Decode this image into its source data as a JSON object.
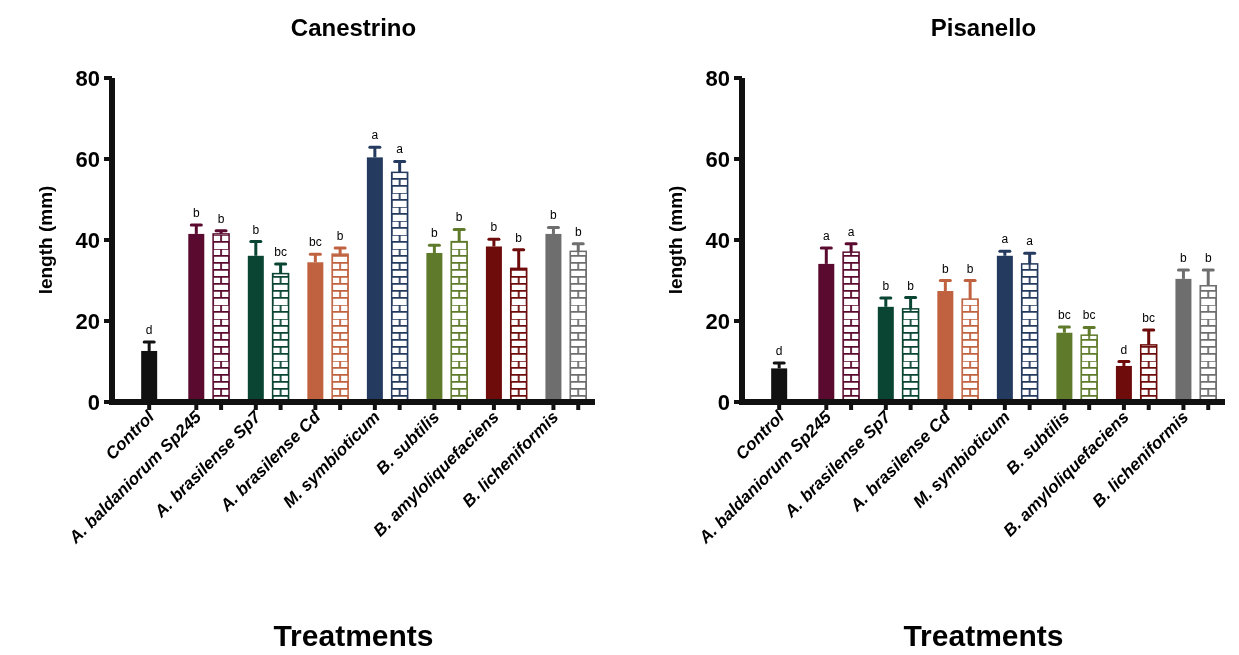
{
  "chart_data": [
    {
      "type": "bar",
      "title": "Canestrino",
      "xlabel": "Treatments",
      "ylabel": "length (mm)",
      "categories": [
        "Control",
        "A. baldaniorum Sp245",
        "A. brasilense Sp7",
        "A. brasilense Cd",
        "M. symbioticum",
        "B. subtilis",
        "B. amyloliquefaciens",
        "B. licheniformis"
      ],
      "ylim": [
        0,
        80
      ],
      "yticks": [
        0,
        20,
        40,
        60,
        80
      ],
      "series": [
        {
          "colors": [
            "#111111",
            "#5a0a2e",
            "#0a4533",
            "#c0623f",
            "#243a5e",
            "#5e7a2a",
            "#6e0b0b",
            "#6e6e6e"
          ],
          "values": [
            12.6,
            41.5,
            36.1,
            34.5,
            60.4,
            36.8,
            38.4,
            41.5
          ],
          "errors": [
            2.2,
            2.2,
            3.5,
            2,
            2.5,
            1.9,
            1.8,
            1.6
          ],
          "value_labels": [
            "d",
            "b",
            "b",
            "bc",
            "a",
            "b",
            "b",
            "b"
          ]
        },
        {
          "colors": [
            null,
            "#5a0a2e",
            "#0a4533",
            "#c0623f",
            "#243a5e",
            "#5e7a2a",
            "#6e0b0b",
            "#6e6e6e"
          ],
          "values": [
            null,
            41.5,
            31.7,
            36.5,
            56.7,
            39.6,
            33,
            37.2
          ],
          "errors": [
            null,
            0.8,
            2.4,
            1.5,
            2.7,
            3,
            4.6,
            1.9
          ],
          "value_labels": [
            null,
            "b",
            "bc",
            "b",
            "a",
            "b",
            "b",
            "b"
          ]
        }
      ]
    },
    {
      "type": "bar",
      "title": "Pisanello",
      "xlabel": "Treatments",
      "ylabel": "length (mm)",
      "categories": [
        "Control",
        "A. baldaniorum Sp245",
        "A. brasilense Sp7",
        "A. brasilense Cd",
        "M. symbioticum",
        "B. subtilis",
        "B. amyloliquefaciens",
        "B. licheniformis"
      ],
      "ylim": [
        0,
        80
      ],
      "yticks": [
        0,
        20,
        40,
        60,
        80
      ],
      "series": [
        {
          "colors": [
            "#111111",
            "#5a0a2e",
            "#0a4533",
            "#c0623f",
            "#243a5e",
            "#5e7a2a",
            "#6e0b0b",
            "#6e6e6e"
          ],
          "values": [
            8.3,
            34.1,
            23.5,
            27.4,
            36.1,
            17.1,
            8.9,
            30.4
          ],
          "errors": [
            1.3,
            3.9,
            2.2,
            2.6,
            1.1,
            1.4,
            1.1,
            2.2
          ],
          "value_labels": [
            "d",
            "a",
            "b",
            "b",
            "a",
            "bc",
            "d",
            "b"
          ]
        },
        {
          "colors": [
            null,
            "#5a0a2e",
            "#0a4533",
            "#c0623f",
            "#243a5e",
            "#5e7a2a",
            "#6e0b0b",
            "#6e6e6e"
          ],
          "values": [
            null,
            37,
            23,
            25.4,
            34.1,
            16.5,
            14.1,
            28.7
          ],
          "errors": [
            null,
            2.1,
            2.8,
            4.6,
            2.6,
            1.9,
            3.7,
            3.9
          ],
          "value_labels": [
            null,
            "a",
            "b",
            "b",
            "a",
            "bc",
            "bc",
            "b"
          ]
        }
      ]
    }
  ]
}
